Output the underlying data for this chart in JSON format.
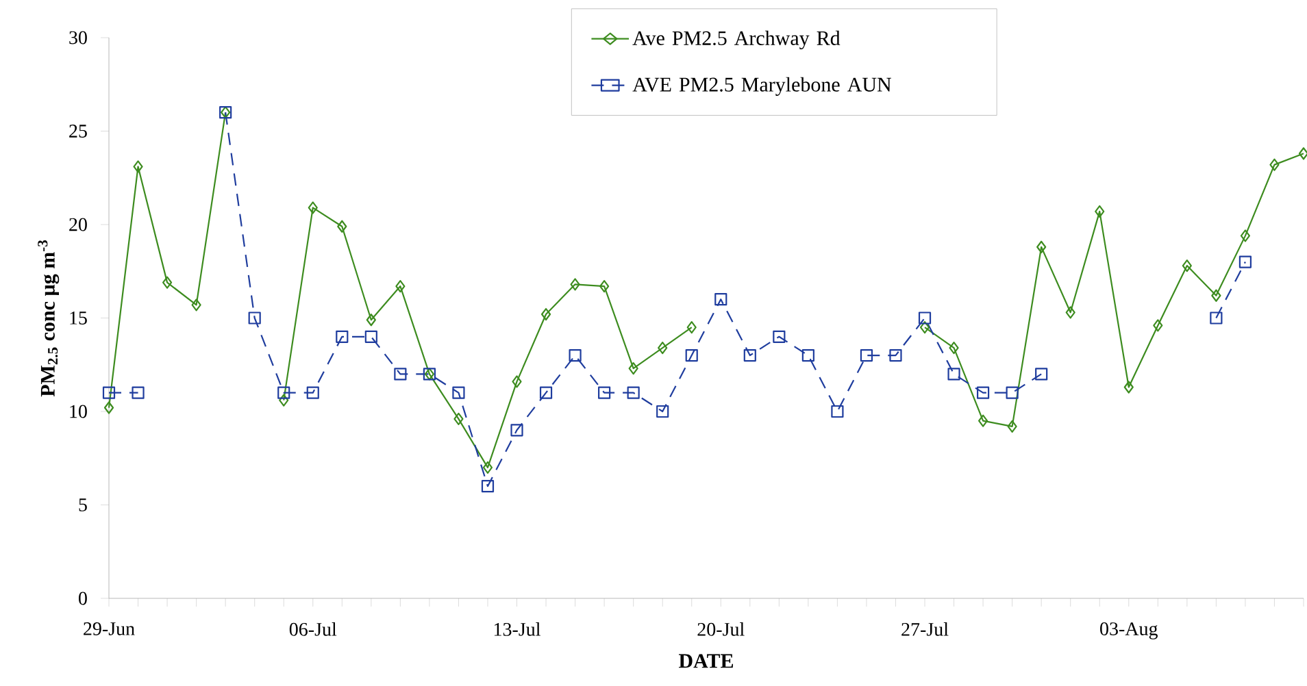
{
  "chart_data": {
    "type": "line",
    "xlabel": "DATE",
    "ylabel": "PM$_{2.5}$ conc µg m$^{-3}$",
    "categories": [
      "29-Jun",
      null,
      null,
      null,
      null,
      null,
      null,
      "06-Jul",
      null,
      null,
      null,
      null,
      null,
      null,
      "13-Jul",
      null,
      null,
      null,
      null,
      null,
      null,
      "20-Jul",
      null,
      null,
      null,
      null,
      null,
      null,
      "27-Jul",
      null,
      null,
      null,
      null,
      null,
      null,
      "03-Aug",
      null,
      null,
      null,
      null,
      null,
      null
    ],
    "ylim": [
      0,
      30
    ],
    "yticks": [
      0,
      5,
      10,
      15,
      20,
      25,
      30
    ],
    "grid": false,
    "legend": "top right",
    "series": [
      {
        "name": "Ave PM2.5 Archway Rd",
        "color": "#3d8c1f",
        "marker": "diamond",
        "line_style": "solid",
        "values": [
          10.2,
          23.1,
          16.9,
          15.7,
          26,
          null,
          10.6,
          20.9,
          19.9,
          14.9,
          16.7,
          12,
          9.6,
          7,
          11.6,
          15.2,
          16.8,
          16.7,
          12.3,
          13.4,
          14.5,
          null,
          null,
          null,
          null,
          null,
          null,
          null,
          14.5,
          13.4,
          9.5,
          9.2,
          18.8,
          15.3,
          20.7,
          11.3,
          14.6,
          17.8,
          16.2,
          19.4,
          23.2,
          23.8
        ]
      },
      {
        "name": "AVE PM2.5 Marylebone AUN",
        "color": "#1f3d9e",
        "marker": "square",
        "line_style": "dashed",
        "values": [
          11,
          11,
          null,
          null,
          26,
          15,
          11,
          11,
          14,
          14,
          12,
          12,
          11,
          6,
          9,
          11,
          13,
          11,
          11,
          10,
          13,
          16,
          13,
          14,
          13,
          10,
          13,
          13,
          15,
          12,
          11,
          11,
          12,
          null,
          null,
          null,
          null,
          null,
          15,
          18,
          null,
          null
        ]
      }
    ]
  }
}
